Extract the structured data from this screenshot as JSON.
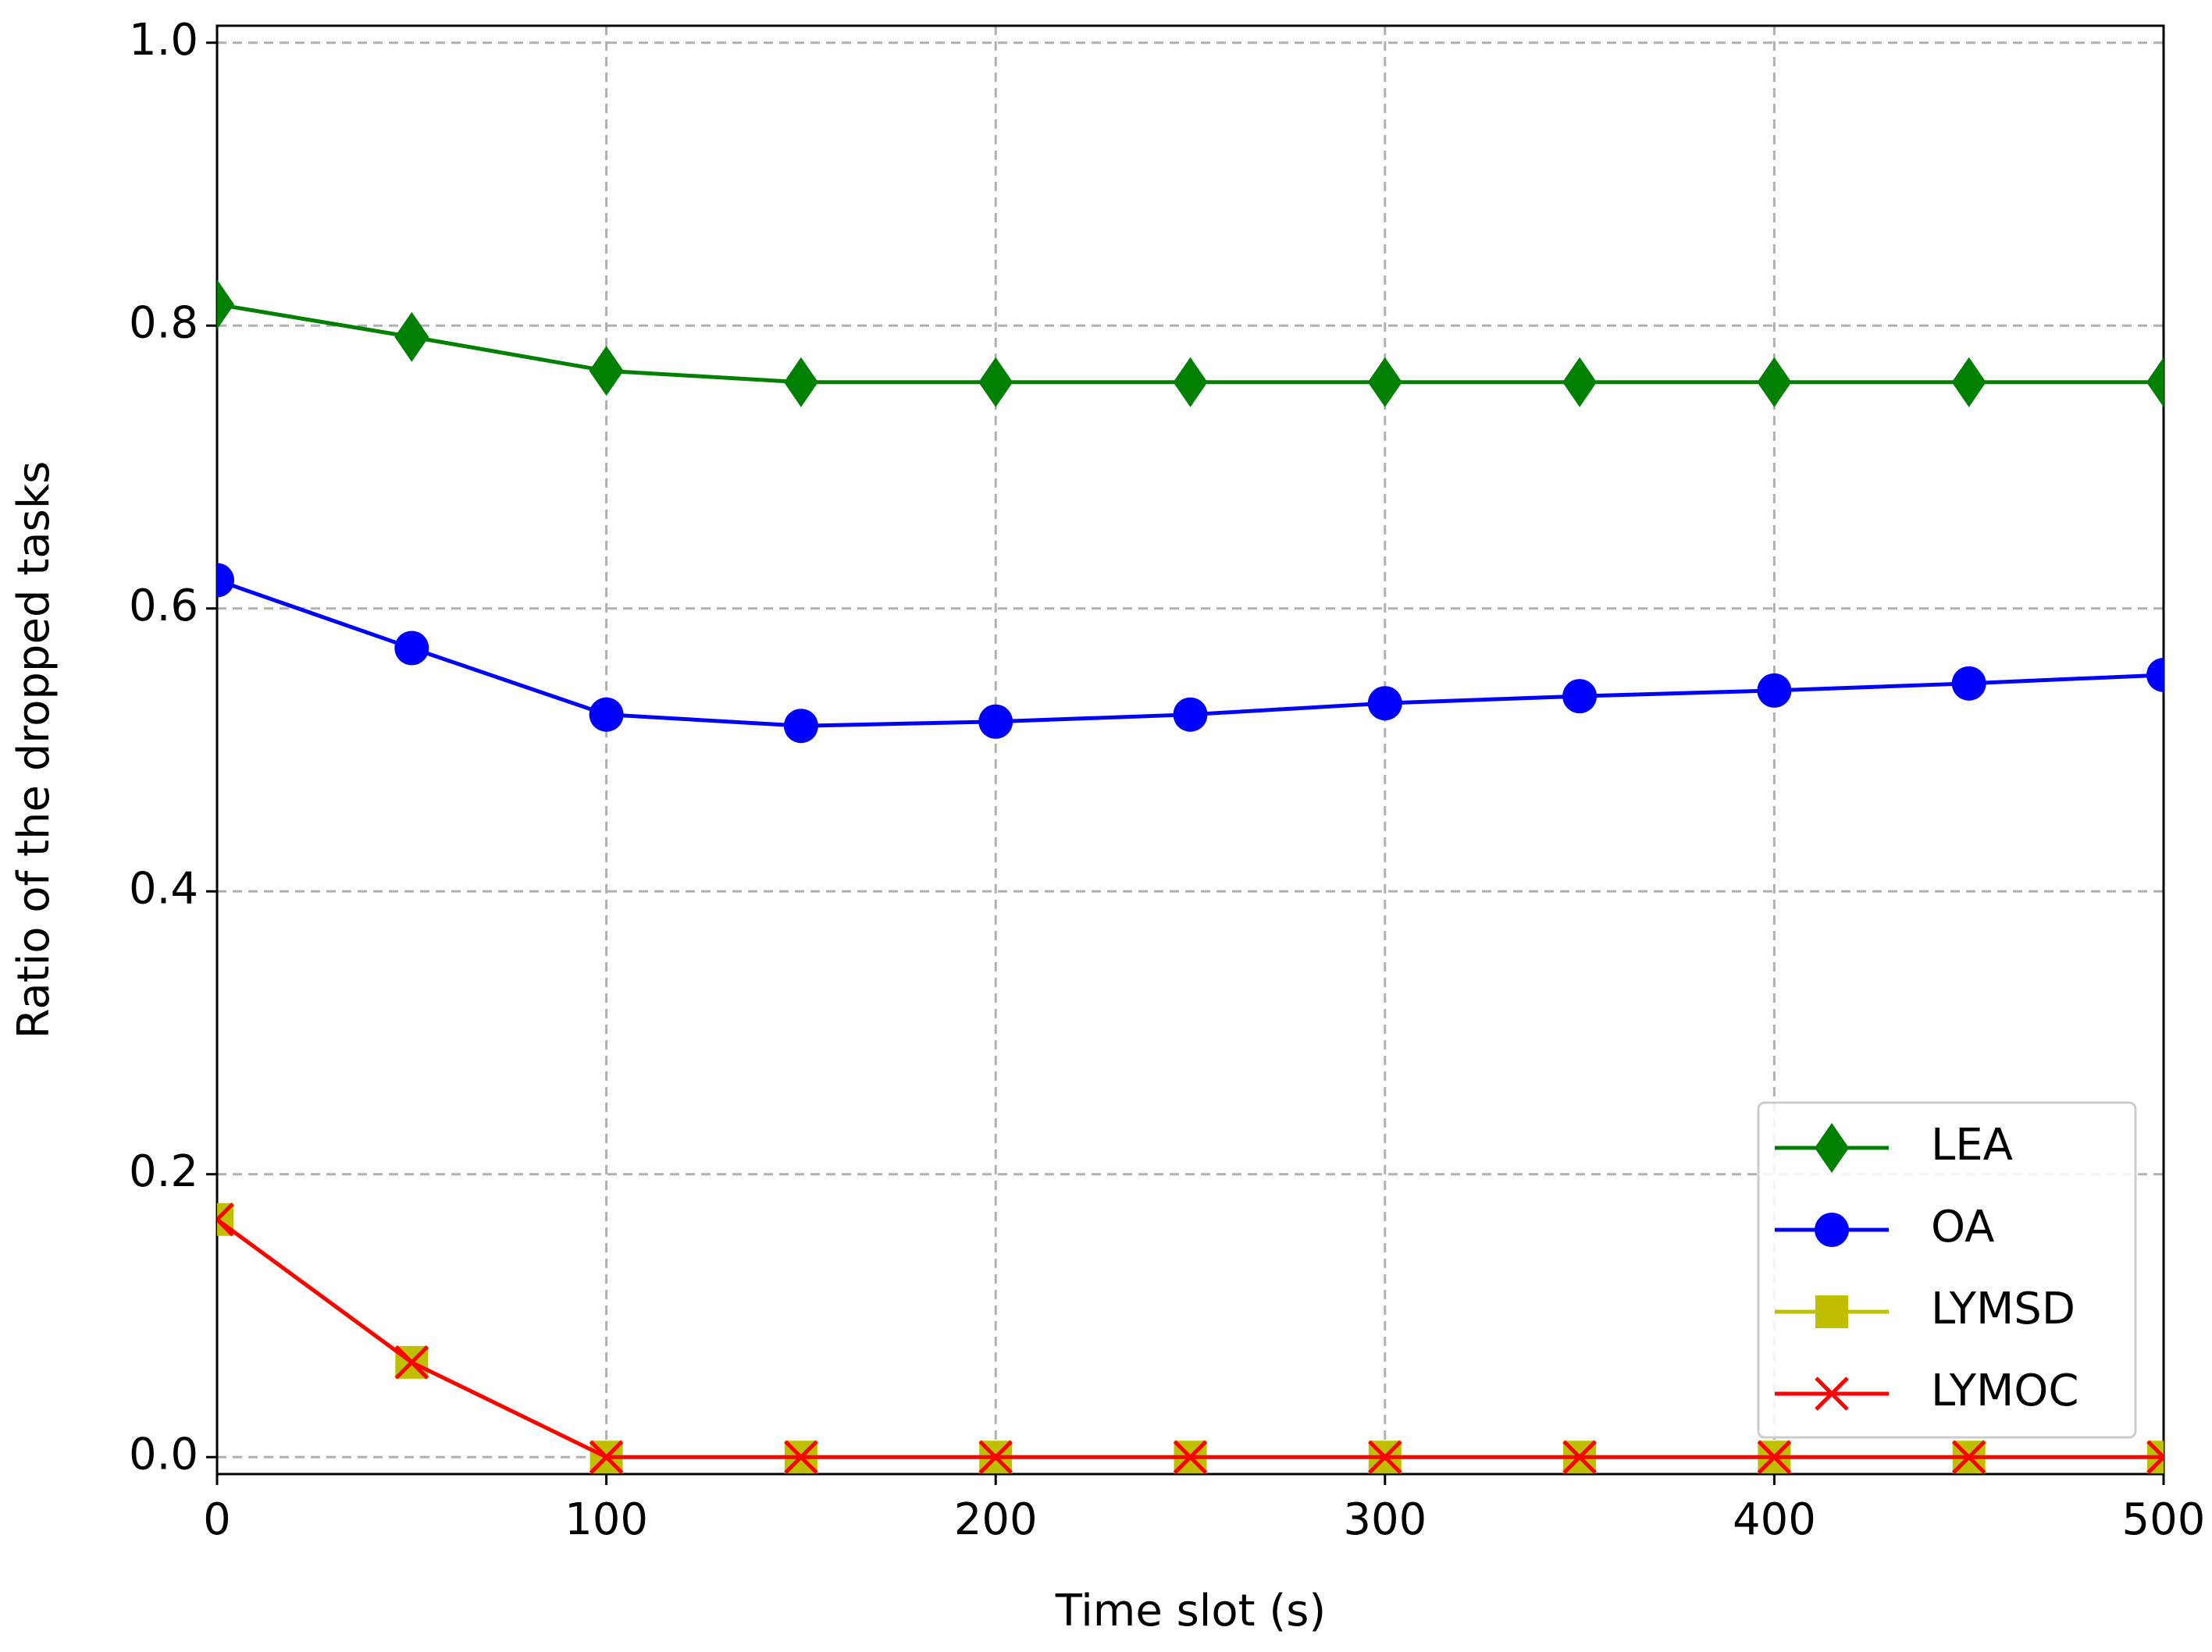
{
  "chart_data": {
    "type": "line",
    "xlabel": "Time slot (s)",
    "ylabel": "Ratio of the dropped tasks",
    "x": [
      0,
      50,
      100,
      150,
      200,
      250,
      300,
      350,
      400,
      450,
      500
    ],
    "series": [
      {
        "name": "LEA",
        "color": "#008000",
        "marker": "diamond",
        "values": [
          0.815,
          0.792,
          0.768,
          0.76,
          0.76,
          0.76,
          0.76,
          0.76,
          0.76,
          0.76,
          0.76
        ]
      },
      {
        "name": "OA",
        "color": "#0000ff",
        "marker": "circle",
        "values": [
          0.62,
          0.572,
          0.525,
          0.517,
          0.52,
          0.525,
          0.533,
          0.538,
          0.542,
          0.547,
          0.553
        ]
      },
      {
        "name": "LYMSD",
        "color": "#bfbf00",
        "marker": "square",
        "values": [
          0.168,
          0.067,
          0,
          0,
          0,
          0,
          0,
          0,
          0,
          0,
          0
        ]
      },
      {
        "name": "LYMOC",
        "color": "#ff0000",
        "marker": "x",
        "values": [
          0.168,
          0.067,
          0,
          0,
          0,
          0,
          0,
          0,
          0,
          0,
          0
        ]
      }
    ],
    "xlim": [
      0,
      500
    ],
    "xticks": [
      0,
      100,
      200,
      300,
      400,
      500
    ],
    "ylim": [
      -0.012,
      1.012
    ],
    "yticks": [
      {
        "value": 0,
        "label": "0.0"
      },
      0.2,
      0.4,
      0.6,
      0.8,
      {
        "value": 1,
        "label": "1.0"
      }
    ],
    "grid": true,
    "legend": "lower right"
  }
}
